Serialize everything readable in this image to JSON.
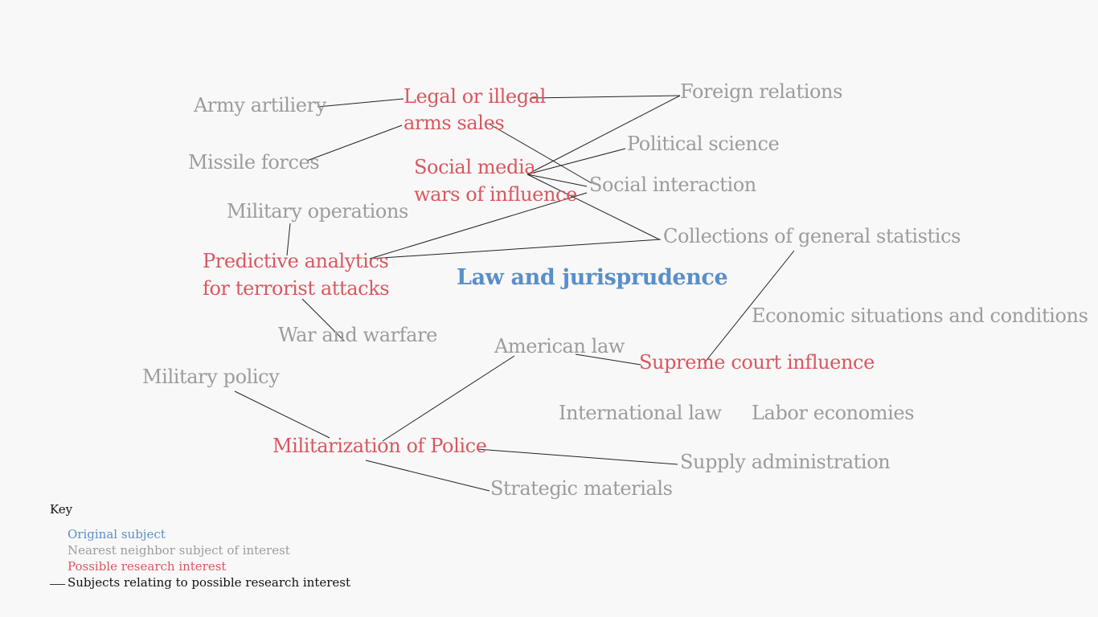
{
  "title": "Law and jurisprudence",
  "nodes": {
    "army_artillery": "Army artiliery",
    "legal_arms_1": "Legal or illegal",
    "legal_arms_2": "arms sales",
    "foreign_relations": "Foreign relations",
    "missile_forces": "Missile forces",
    "political_science": "Political science",
    "social_media_1": "Social media",
    "social_media_2": "wars of influence",
    "social_interaction": "Social interaction",
    "military_operations": "Military operations",
    "collections_stats": "Collections of general statistics",
    "predictive_1": "Predictive analytics",
    "predictive_2": "for terrorist attacks",
    "economic_situations": "Economic situations and conditions",
    "war_warfare": "War and warfare",
    "american_law": "American law",
    "supreme_court": "Supreme court influence",
    "military_policy": "Military policy",
    "international_law": "International law",
    "labor_economies": "Labor economies",
    "militarization": "Militarization of Police",
    "supply_admin": "Supply administration",
    "strategic_materials": "Strategic materials"
  },
  "key": {
    "title": "Key",
    "original": "Original subject",
    "neighbor": "Nearest neighbor subject of interest",
    "possible": "Possible research interest",
    "relating": "Subjects relating to possible research interest"
  },
  "colors": {
    "original": "#5a8fc8",
    "neighbor": "#9c9c9c",
    "possible": "#d9575f",
    "line": "#222222"
  }
}
